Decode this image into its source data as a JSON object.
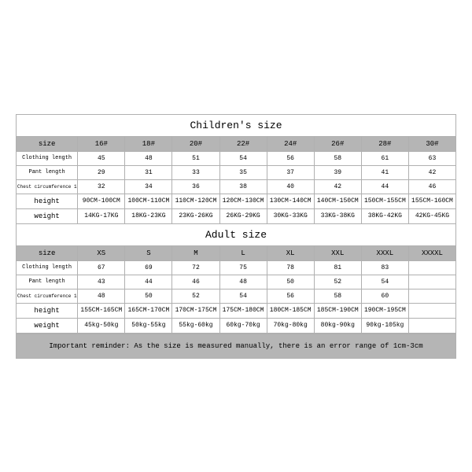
{
  "styling": {
    "page_background": "#ffffff",
    "header_background": "#b5b5b5",
    "border_color": "#b0b0b0",
    "text_color": "#000000",
    "font_family": "Courier New",
    "title_fontsize": 13,
    "cell_fontsize": 8,
    "header_fontsize": 9
  },
  "children": {
    "title": "Children's size",
    "headers": {
      "size": "size",
      "h0": "16#",
      "h1": "18#",
      "h2": "20#",
      "h3": "22#",
      "h4": "24#",
      "h5": "26#",
      "h6": "28#",
      "h7": "30#"
    },
    "rows": {
      "clothing_length": {
        "label": "Clothing length",
        "v0": "45",
        "v1": "48",
        "v2": "51",
        "v3": "54",
        "v4": "56",
        "v5": "58",
        "v6": "61",
        "v7": "63"
      },
      "pant_length": {
        "label": "Pant length",
        "v0": "29",
        "v1": "31",
        "v2": "33",
        "v3": "35",
        "v4": "37",
        "v5": "39",
        "v6": "41",
        "v7": "42"
      },
      "chest": {
        "label": "Chest circumference 1/2",
        "v0": "32",
        "v1": "34",
        "v2": "36",
        "v3": "38",
        "v4": "40",
        "v5": "42",
        "v6": "44",
        "v7": "46"
      },
      "height": {
        "label": "height",
        "v0": "90CM-100CM",
        "v1": "100CM-110CM",
        "v2": "110CM-120CM",
        "v3": "120CM-130CM",
        "v4": "130CM-140CM",
        "v5": "140CM-150CM",
        "v6": "150CM-155CM",
        "v7": "155CM-160CM"
      },
      "weight": {
        "label": "weight",
        "v0": "14KG-17KG",
        "v1": "18KG-23KG",
        "v2": "23KG-26KG",
        "v3": "26KG-29KG",
        "v4": "30KG-33KG",
        "v5": "33KG-38KG",
        "v6": "38KG-42KG",
        "v7": "42KG-45KG"
      }
    }
  },
  "adult": {
    "title": "Adult size",
    "headers": {
      "size": "size",
      "h0": "XS",
      "h1": "S",
      "h2": "M",
      "h3": "L",
      "h4": "XL",
      "h5": "XXL",
      "h6": "XXXL",
      "h7": "XXXXL"
    },
    "rows": {
      "clothing_length": {
        "label": "Clothing length",
        "v0": "67",
        "v1": "69",
        "v2": "72",
        "v3": "75",
        "v4": "78",
        "v5": "81",
        "v6": "83",
        "v7": ""
      },
      "pant_length": {
        "label": "Pant length",
        "v0": "43",
        "v1": "44",
        "v2": "46",
        "v3": "48",
        "v4": "50",
        "v5": "52",
        "v6": "54",
        "v7": ""
      },
      "chest": {
        "label": "Chest circumference 1/2",
        "v0": "48",
        "v1": "50",
        "v2": "52",
        "v3": "54",
        "v4": "56",
        "v5": "58",
        "v6": "60",
        "v7": ""
      },
      "height": {
        "label": "height",
        "v0": "155CM-165CM",
        "v1": "165CM-170CM",
        "v2": "170CM-175CM",
        "v3": "175CM-180CM",
        "v4": "180CM-185CM",
        "v5": "185CM-190CM",
        "v6": "190CM-195CM",
        "v7": ""
      },
      "weight": {
        "label": "weight",
        "v0": "45kg-50kg",
        "v1": "50kg-55kg",
        "v2": "55kg-60kg",
        "v3": "60kg-70kg",
        "v4": "70kg-80kg",
        "v5": "80kg-90kg",
        "v6": "90kg-105kg",
        "v7": ""
      }
    }
  },
  "reminder": "Important reminder: As the size is measured manually, there is an error range of 1cm-3cm"
}
